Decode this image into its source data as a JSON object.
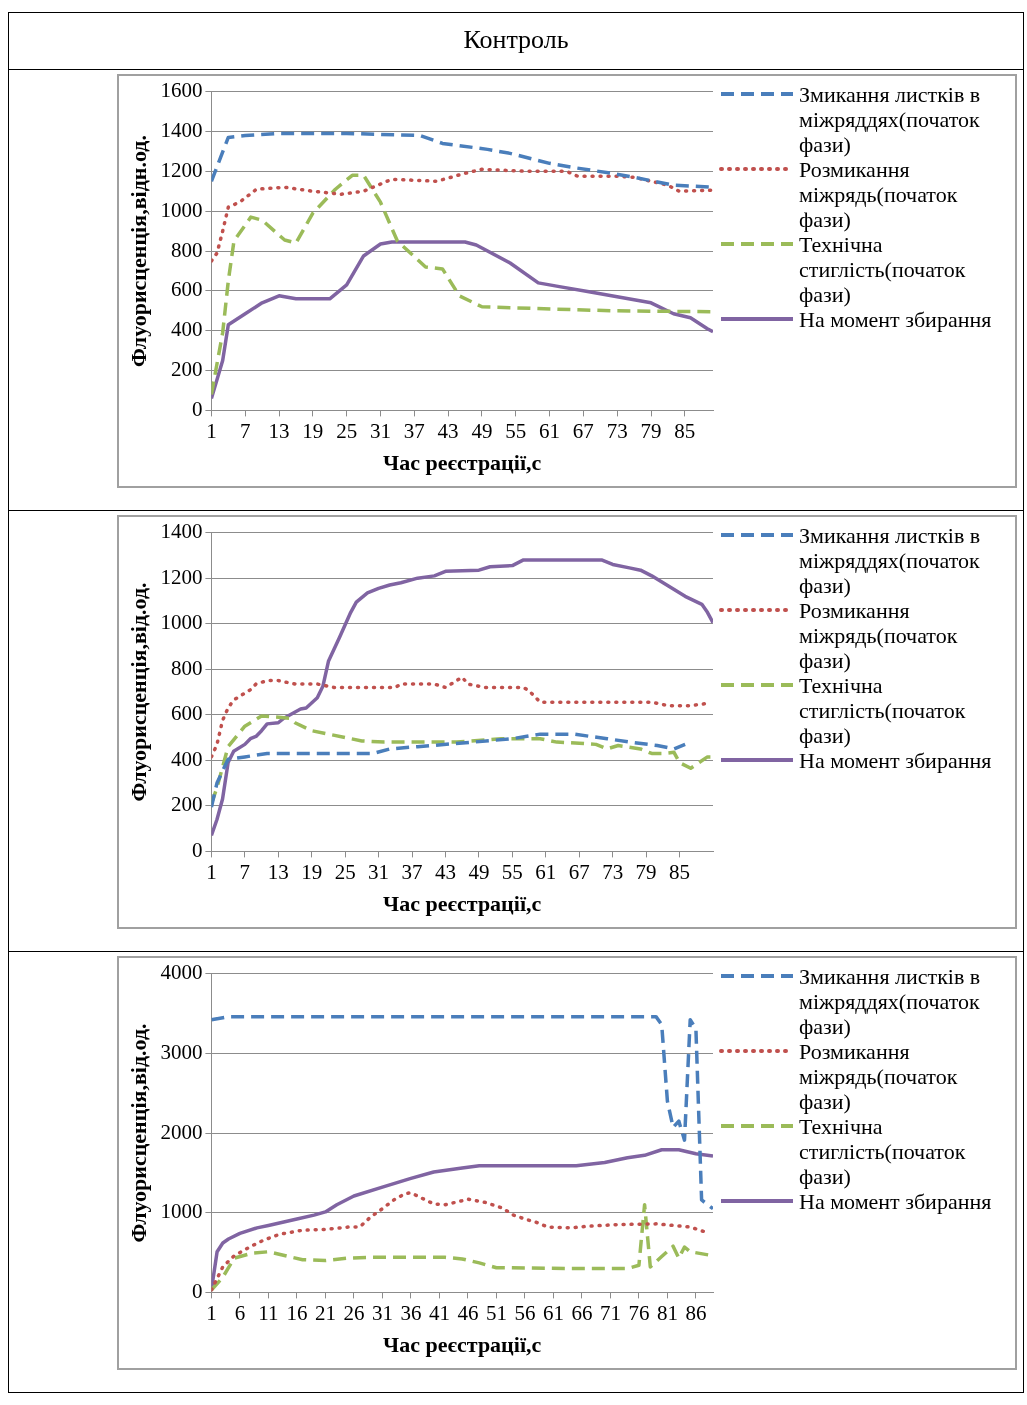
{
  "chart_data": [
    {
      "type": "line",
      "title": "Контроль",
      "xlabel": "Час реєстрації,с",
      "ylabel": "Флуорисценція,відн.од.",
      "xlim": [
        1,
        90
      ],
      "xticks": [
        1,
        7,
        13,
        19,
        25,
        31,
        37,
        43,
        49,
        55,
        61,
        67,
        73,
        79,
        85
      ],
      "ylim": [
        0,
        1600
      ],
      "yticks": [
        0,
        200,
        400,
        600,
        800,
        1000,
        1200,
        1400,
        1600
      ],
      "grid": "y",
      "legend": "right",
      "marker": "none",
      "series": [
        {
          "name": "Змикання листків в міжряддях(початок фази)",
          "color": "#4a7ebb",
          "line_style": "dashed",
          "x": [
            1,
            4,
            7,
            13,
            25,
            38,
            42,
            50,
            54,
            61,
            65,
            72,
            76,
            83,
            90
          ],
          "values": [
            1150,
            1370,
            1380,
            1390,
            1390,
            1380,
            1340,
            1310,
            1290,
            1240,
            1220,
            1190,
            1170,
            1130,
            1120
          ]
        },
        {
          "name": "Розмикання міжрядь(початок фази)",
          "color": "#c0504d",
          "line_style": "dotted",
          "x": [
            1,
            2,
            3,
            4,
            6,
            9,
            14,
            19,
            24,
            28,
            33,
            41,
            46,
            49,
            57,
            64,
            66,
            73,
            76,
            82,
            84,
            90
          ],
          "values": [
            750,
            790,
            900,
            1020,
            1045,
            1110,
            1120,
            1100,
            1085,
            1100,
            1160,
            1150,
            1190,
            1210,
            1200,
            1200,
            1175,
            1175,
            1170,
            1130,
            1100,
            1105
          ]
        },
        {
          "name": "Технічна стиглість(початок фази)",
          "color": "#9bbb59",
          "line_style": "dashed",
          "x": [
            1,
            3,
            4,
            5,
            8,
            10,
            14,
            16,
            19,
            23,
            26,
            28,
            31,
            34,
            39,
            42,
            45,
            49,
            60,
            72,
            90
          ],
          "values": [
            80,
            390,
            650,
            850,
            970,
            955,
            855,
            840,
            990,
            1110,
            1180,
            1180,
            1045,
            850,
            720,
            710,
            575,
            520,
            510,
            500,
            495
          ]
        },
        {
          "name": "На момент збирання",
          "color": "#8064a2",
          "line_style": "solid",
          "x": [
            1,
            3,
            4,
            7,
            10,
            13,
            16,
            22,
            25,
            28,
            31,
            33,
            46,
            48,
            54,
            59,
            63,
            68,
            74,
            79,
            83,
            86,
            89,
            90
          ],
          "values": [
            60,
            250,
            430,
            485,
            540,
            575,
            560,
            560,
            630,
            775,
            835,
            845,
            845,
            830,
            740,
            640,
            620,
            595,
            565,
            540,
            485,
            465,
            410,
            395
          ]
        }
      ]
    },
    {
      "type": "line",
      "xlabel": "Час реєстрації,с",
      "ylabel": "Флуорисценція,від.од.",
      "xlim": [
        1,
        91
      ],
      "xticks": [
        1,
        7,
        13,
        19,
        25,
        31,
        37,
        43,
        49,
        55,
        61,
        67,
        73,
        79,
        85
      ],
      "ylim": [
        0,
        1400
      ],
      "yticks": [
        0,
        200,
        400,
        600,
        800,
        1000,
        1200,
        1400
      ],
      "grid": "y",
      "legend": "right",
      "marker": "none",
      "series": [
        {
          "name": "Змикання листків в міжряддях(початок фази)",
          "color": "#4a7ebb",
          "line_style": "dashed",
          "x": [
            1,
            2,
            4,
            7,
            11,
            30,
            33,
            38,
            48,
            55,
            60,
            66,
            72,
            76,
            81,
            84,
            86
          ],
          "values": [
            195,
            300,
            405,
            415,
            430,
            430,
            450,
            460,
            480,
            495,
            515,
            515,
            495,
            480,
            465,
            450,
            470
          ]
        },
        {
          "name": "Розмикання міжрядь(початок фази)",
          "color": "#c0504d",
          "line_style": "dotted",
          "x": [
            1,
            2,
            3,
            4,
            5,
            7,
            8,
            9,
            11,
            13,
            16,
            20,
            23,
            34,
            35,
            41,
            43,
            46,
            47,
            50,
            57,
            58,
            60,
            69,
            80,
            83,
            87,
            90
          ],
          "values": [
            415,
            470,
            575,
            630,
            665,
            695,
            710,
            735,
            750,
            750,
            735,
            735,
            720,
            720,
            735,
            735,
            720,
            765,
            735,
            720,
            720,
            705,
            655,
            655,
            655,
            640,
            640,
            650
          ]
        },
        {
          "name": "Технічна стиглість(початок фази)",
          "color": "#9bbb59",
          "line_style": "dashed",
          "x": [
            1,
            2,
            4,
            7,
            10,
            15,
            16,
            19,
            22,
            25,
            28,
            32,
            45,
            53,
            60,
            63,
            67,
            70,
            72,
            74,
            78,
            80,
            82,
            84,
            85,
            87,
            90,
            91
          ],
          "values": [
            210,
            280,
            460,
            550,
            595,
            585,
            565,
            530,
            515,
            500,
            485,
            480,
            480,
            495,
            495,
            480,
            475,
            470,
            450,
            465,
            450,
            430,
            430,
            435,
            390,
            365,
            415,
            415
          ]
        },
        {
          "name": "На момент збирання",
          "color": "#8064a2",
          "line_style": "solid",
          "x": [
            1,
            2,
            3,
            4,
            5,
            7,
            8,
            9,
            10,
            11,
            13,
            14,
            17,
            18,
            20,
            21,
            22,
            24,
            26,
            27,
            29,
            31,
            33,
            35,
            38,
            41,
            43,
            49,
            51,
            55,
            57,
            71,
            73,
            76,
            78,
            80,
            83,
            86,
            89,
            90,
            91
          ],
          "values": [
            70,
            140,
            230,
            390,
            440,
            470,
            495,
            505,
            530,
            560,
            565,
            585,
            625,
            630,
            675,
            725,
            835,
            940,
            1050,
            1095,
            1135,
            1155,
            1170,
            1180,
            1200,
            1210,
            1230,
            1235,
            1250,
            1255,
            1280,
            1280,
            1260,
            1245,
            1235,
            1210,
            1165,
            1120,
            1085,
            1050,
            1005
          ]
        }
      ]
    },
    {
      "type": "line",
      "xlabel": "Час реєстрації,с",
      "ylabel": "Флуорисценція,від.од.",
      "xlim": [
        1,
        89
      ],
      "xticks": [
        1,
        6,
        11,
        16,
        21,
        26,
        31,
        36,
        41,
        46,
        51,
        56,
        61,
        66,
        71,
        76,
        81,
        86
      ],
      "ylim": [
        0,
        4000
      ],
      "yticks": [
        0,
        1000,
        2000,
        3000,
        4000
      ],
      "grid": "y",
      "legend": "right",
      "marker": "none",
      "series": [
        {
          "name": "Змикання листків в міжряддях(початок фази)",
          "color": "#4a7ebb",
          "line_style": "dashed",
          "x": [
            1,
            4,
            77,
            79,
            80,
            81,
            82,
            83,
            84,
            85,
            86,
            87,
            89
          ],
          "values": [
            3420,
            3460,
            3460,
            3460,
            3360,
            2400,
            2070,
            2150,
            1910,
            3420,
            3310,
            1160,
            1050
          ]
        },
        {
          "name": "Розмикання міжрядь(початок фази)",
          "color": "#c0504d",
          "line_style": "dotted",
          "x": [
            1,
            3,
            5,
            8,
            10,
            13,
            17,
            21,
            25,
            27,
            29,
            31,
            33,
            35,
            36,
            38,
            40,
            42,
            45,
            46,
            49,
            52,
            54,
            56,
            58,
            60,
            64,
            67,
            72,
            79,
            85,
            88
          ],
          "values": [
            30,
            320,
            460,
            580,
            650,
            730,
            780,
            790,
            820,
            820,
            950,
            1050,
            1160,
            1240,
            1250,
            1180,
            1110,
            1100,
            1150,
            1170,
            1130,
            1060,
            970,
            920,
            880,
            820,
            810,
            830,
            850,
            860,
            820,
            750
          ]
        },
        {
          "name": "Технічна стиглість(початок фази)",
          "color": "#9bbb59",
          "line_style": "dashed",
          "x": [
            1,
            3,
            5,
            8,
            11,
            14,
            17,
            21,
            25,
            29,
            42,
            45,
            48,
            51,
            64,
            74,
            76,
            77,
            78,
            80,
            82,
            83,
            84,
            85,
            89
          ],
          "values": [
            30,
            190,
            430,
            490,
            510,
            460,
            410,
            400,
            430,
            440,
            440,
            420,
            370,
            310,
            300,
            300,
            340,
            1100,
            320,
            450,
            580,
            430,
            570,
            510,
            460
          ]
        },
        {
          "name": "На момент збирання",
          "color": "#8064a2",
          "line_style": "solid",
          "x": [
            1,
            2,
            3,
            4,
            6,
            9,
            11,
            16,
            19,
            21,
            23,
            26,
            31,
            36,
            40,
            45,
            48,
            65,
            70,
            74,
            77,
            80,
            83,
            86,
            89
          ],
          "values": [
            30,
            510,
            620,
            670,
            740,
            810,
            840,
            920,
            970,
            1010,
            1100,
            1210,
            1320,
            1430,
            1510,
            1560,
            1590,
            1590,
            1630,
            1690,
            1720,
            1790,
            1790,
            1740,
            1710
          ]
        }
      ]
    }
  ]
}
